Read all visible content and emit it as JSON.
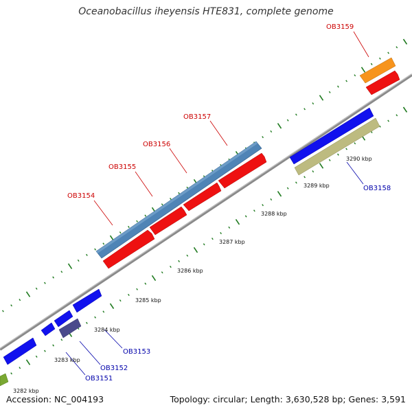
{
  "title": "Oceanobacillus iheyensis HTE831, complete genome",
  "footer": {
    "accession": "Accession: NC_004193",
    "summary": "Topology: circular; Length: 3,630,528 bp; Genes: 3,591"
  },
  "colors": {
    "backbone": "#8a8a8a",
    "tick": "#1f7a1f",
    "label_forward": "#cc0000",
    "label_reverse": "#0000aa"
  },
  "ticks": [
    {
      "label": "3282 kbp"
    },
    {
      "label": "3283 kbp"
    },
    {
      "label": "3284 kbp"
    },
    {
      "label": "3285 kbp"
    },
    {
      "label": "3286 kbp"
    },
    {
      "label": "3287 kbp"
    },
    {
      "label": "3288 kbp"
    },
    {
      "label": "3289 kbp"
    },
    {
      "label": "3290 kbp"
    }
  ],
  "gene_labels": [
    {
      "name": "OB3154",
      "strand": "forward"
    },
    {
      "name": "OB3155",
      "strand": "forward"
    },
    {
      "name": "OB3156",
      "strand": "forward"
    },
    {
      "name": "OB3157",
      "strand": "forward"
    },
    {
      "name": "OB3159",
      "strand": "forward"
    },
    {
      "name": "OB3158",
      "strand": "reverse"
    },
    {
      "name": "OB3153",
      "strand": "reverse"
    },
    {
      "name": "OB3152",
      "strand": "reverse"
    },
    {
      "name": "OB3151",
      "strand": "reverse"
    }
  ]
}
